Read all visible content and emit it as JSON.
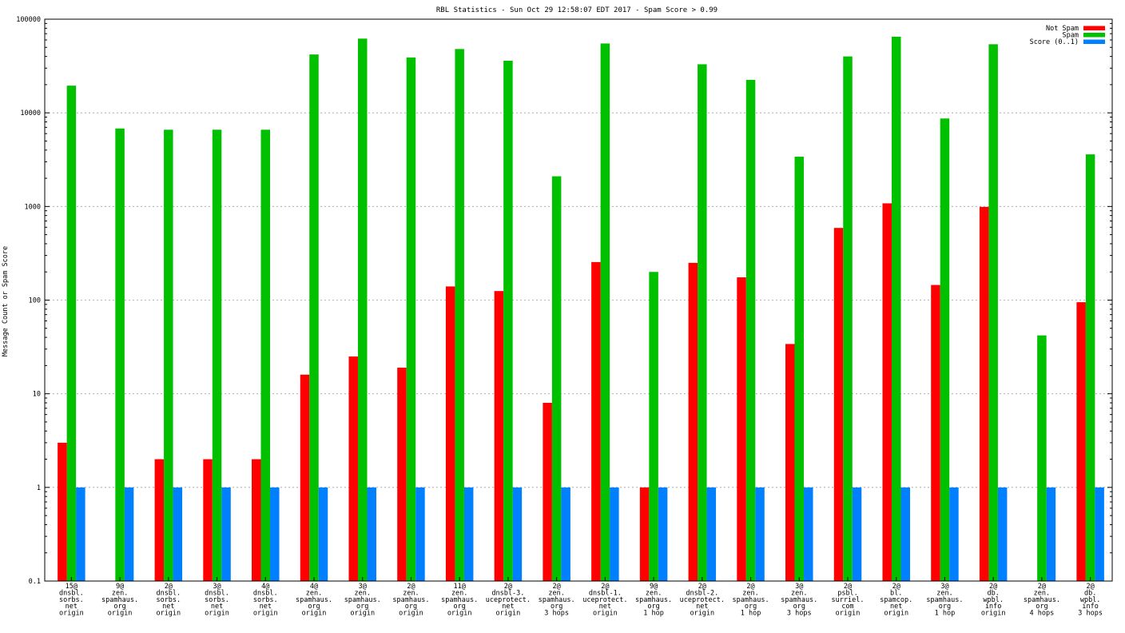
{
  "chart_data": {
    "type": "bar",
    "title": "RBL Statistics - Sun Oct 29 12:58:07 EDT 2017 - Spam Score > 0.99",
    "ylabel": "Message Count or Spam Score",
    "xlabel": "",
    "yscale": "log",
    "ylim": [
      0.1,
      100000
    ],
    "yticks": [
      {
        "value": 0.1,
        "label": "0.1"
      },
      {
        "value": 1,
        "label": "1"
      },
      {
        "value": 10,
        "label": "10"
      },
      {
        "value": 100,
        "label": "100"
      },
      {
        "value": 1000,
        "label": "1000"
      },
      {
        "value": 10000,
        "label": "10000"
      },
      {
        "value": 100000,
        "label": "100000"
      }
    ],
    "grid": true,
    "legend_position": "top-right",
    "categories": [
      [
        "15@",
        "dnsbl.",
        "sorbs.",
        "net",
        "origin"
      ],
      [
        "9@",
        "zen.",
        "spamhaus.",
        "org",
        "origin"
      ],
      [
        "2@",
        "dnsbl.",
        "sorbs.",
        "net",
        "origin"
      ],
      [
        "3@",
        "dnsbl.",
        "sorbs.",
        "net",
        "origin"
      ],
      [
        "4@",
        "dnsbl.",
        "sorbs.",
        "net",
        "origin"
      ],
      [
        "4@",
        "zen.",
        "spamhaus.",
        "org",
        "origin"
      ],
      [
        "3@",
        "zen.",
        "spamhaus.",
        "org",
        "origin"
      ],
      [
        "2@",
        "zen.",
        "spamhaus.",
        "org",
        "origin"
      ],
      [
        "11@",
        "zen.",
        "spamhaus.",
        "org",
        "origin"
      ],
      [
        "2@",
        "dnsbl-3.",
        "uceprotect.",
        "net",
        "origin"
      ],
      [
        "2@",
        "zen.",
        "spamhaus.",
        "org",
        "3 hops"
      ],
      [
        "2@",
        "dnsbl-1.",
        "uceprotect.",
        "net",
        "origin"
      ],
      [
        "9@",
        "zen.",
        "spamhaus.",
        "org",
        "1 hop"
      ],
      [
        "2@",
        "dnsbl-2.",
        "uceprotect.",
        "net",
        "origin"
      ],
      [
        "2@",
        "zen.",
        "spamhaus.",
        "org",
        "1 hop"
      ],
      [
        "3@",
        "zen.",
        "spamhaus.",
        "org",
        "3 hops"
      ],
      [
        "2@",
        "psbl.",
        "surriel.",
        "com",
        "origin"
      ],
      [
        "2@",
        "bl.",
        "spamcop.",
        "net",
        "origin"
      ],
      [
        "3@",
        "zen.",
        "spamhaus.",
        "org",
        "1 hop"
      ],
      [
        "2@",
        "db.",
        "wpbl.",
        "info",
        "origin"
      ],
      [
        "2@",
        "zen.",
        "spamhaus.",
        "org",
        "4 hops"
      ],
      [
        "2@",
        "db.",
        "wpbl.",
        "info",
        "3 hops"
      ]
    ],
    "series": [
      {
        "name": "Not Spam",
        "color": "#ff0000",
        "values": [
          3,
          null,
          2,
          2,
          2,
          16,
          25,
          19,
          140,
          125,
          8,
          255,
          1,
          250,
          175,
          34,
          590,
          1080,
          145,
          990,
          null,
          95
        ]
      },
      {
        "name": "Spam",
        "color": "#00c000",
        "values": [
          19500,
          6800,
          6600,
          6600,
          6600,
          42000,
          62000,
          39000,
          48000,
          36000,
          2100,
          55000,
          200,
          33000,
          22500,
          3400,
          40000,
          65000,
          8700,
          54000,
          42,
          3600
        ]
      },
      {
        "name": "Score (0..1)",
        "color": "#0080ff",
        "values": [
          1,
          1,
          1,
          1,
          1,
          1,
          1,
          1,
          1,
          1,
          1,
          1,
          1,
          1,
          1,
          1,
          1,
          1,
          1,
          1,
          1,
          1
        ]
      }
    ]
  }
}
